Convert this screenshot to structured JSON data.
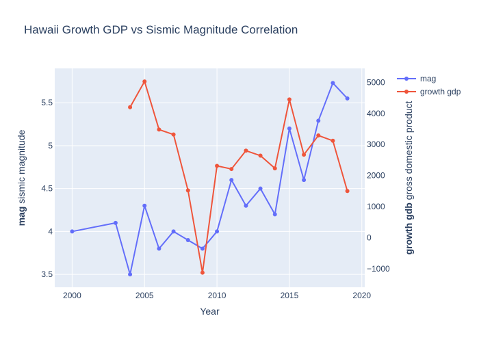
{
  "chart_data": {
    "type": "line",
    "title": "Hawaii Growth GDP vs Sismic Magnitude Correlation",
    "xlabel": "Year",
    "ylabel_left": {
      "bold": "mag",
      "rest": " sismic magnitude"
    },
    "ylabel_right": {
      "bold": "growth gdb",
      "rest": " gross domestic product"
    },
    "xlim": [
      1998.8,
      2020.2
    ],
    "ylim_left": [
      3.35,
      5.9
    ],
    "ylim_right": [
      -1600,
      5450
    ],
    "x_ticks": [
      2000,
      2005,
      2010,
      2015,
      2020
    ],
    "y_left_ticks": [
      3.5,
      4,
      4.5,
      5,
      5.5
    ],
    "y_left_tick_labels": [
      "3.5",
      "4",
      "4.5",
      "5",
      "5.5"
    ],
    "y_right_ticks": [
      -1000,
      0,
      1000,
      2000,
      3000,
      4000,
      5000
    ],
    "y_right_tick_labels": [
      "−1000",
      "0",
      "1000",
      "2000",
      "3000",
      "4000",
      "5000"
    ],
    "grid": true,
    "legend_position": "top-right",
    "series": [
      {
        "name": "mag",
        "axis": "left",
        "color": "#636efa",
        "x": [
          2000,
          2003,
          2004,
          2005,
          2006,
          2007,
          2008,
          2009,
          2010,
          2011,
          2012,
          2013,
          2014,
          2015,
          2016,
          2017,
          2018,
          2019
        ],
        "y": [
          4.0,
          4.1,
          3.5,
          4.3,
          3.8,
          4.0,
          3.9,
          3.8,
          4.0,
          4.6,
          4.3,
          4.5,
          4.2,
          5.2,
          4.6,
          5.29,
          5.73,
          5.55
        ]
      },
      {
        "name": "growth gdp",
        "axis": "right",
        "color": "#ef553b",
        "x": [
          2004,
          2005,
          2006,
          2007,
          2008,
          2009,
          2010,
          2011,
          2012,
          2013,
          2014,
          2015,
          2016,
          2017,
          2018,
          2019
        ],
        "y": [
          4200,
          5030,
          3480,
          3320,
          1520,
          -1130,
          2310,
          2210,
          2800,
          2640,
          2230,
          4450,
          2670,
          3290,
          3120,
          1500
        ]
      }
    ]
  }
}
